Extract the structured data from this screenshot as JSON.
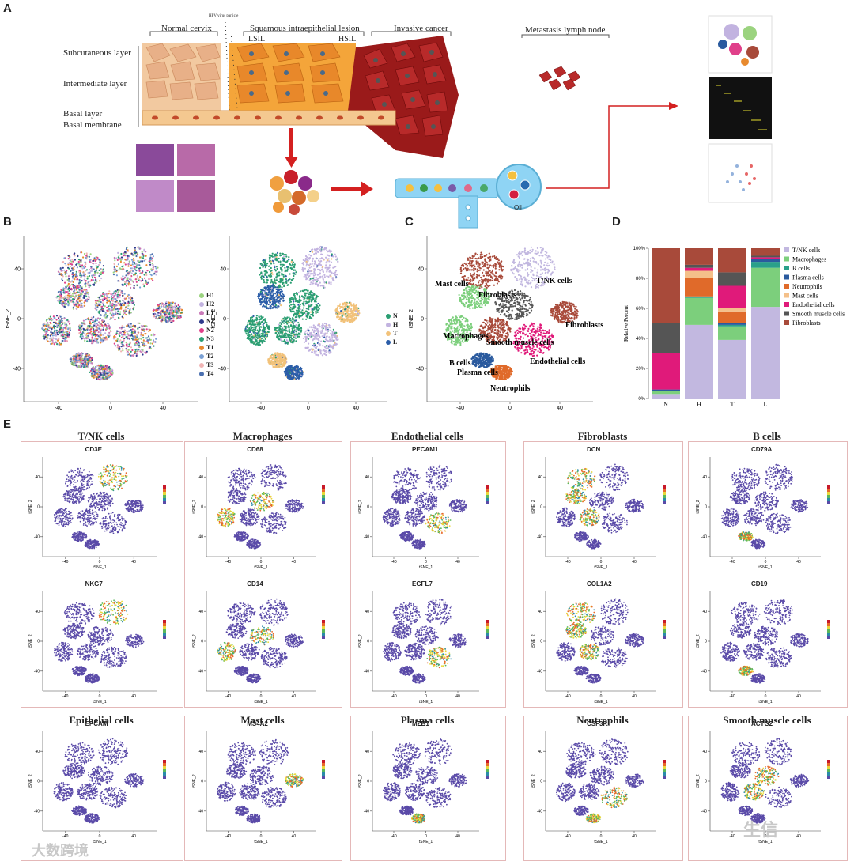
{
  "panels": {
    "A": "A",
    "B": "B",
    "C": "C",
    "D": "D",
    "E": "E"
  },
  "panelA": {
    "hpv": "HPV virus particle",
    "normal": "Normal cervix",
    "sil": "Squamous intraepithelial lesion",
    "lsil": "LSIL",
    "hsil": "HSIL",
    "invasive": "Invasive cancer",
    "metastasis": "Metastasis lymph node",
    "layers": [
      "Subcutaneous layer",
      "Intermediate layer",
      "Basal layer",
      "Basal membrane"
    ],
    "oil": "Oil"
  },
  "panelB": {
    "left_legend": [
      {
        "label": "H1",
        "color": "#9bd37f"
      },
      {
        "label": "H2",
        "color": "#c2b3e0"
      },
      {
        "label": "L1",
        "color": "#c97ab8"
      },
      {
        "label": "N1",
        "color": "#2e3a8c"
      },
      {
        "label": "N2",
        "color": "#e0408a"
      },
      {
        "label": "N3",
        "color": "#2a9e72"
      },
      {
        "label": "T1",
        "color": "#e88a2e"
      },
      {
        "label": "T2",
        "color": "#7aa0d4"
      },
      {
        "label": "T3",
        "color": "#f0b4b4"
      },
      {
        "label": "T4",
        "color": "#4a6fb0"
      }
    ],
    "right_legend": [
      {
        "label": "N",
        "color": "#2a9e72"
      },
      {
        "label": "H",
        "color": "#c2b3e0"
      },
      {
        "label": "T",
        "color": "#f2c27a"
      },
      {
        "label": "L",
        "color": "#2b5da8"
      }
    ],
    "xlabel": "tSNE_1",
    "ylabel": "tSNE_2",
    "yticks": [
      "40",
      "0",
      "-40"
    ],
    "xticks": [
      "-40",
      "0",
      "40"
    ]
  },
  "panelC": {
    "xlabel": "tSNE_1",
    "ylabel": "tSNE_2",
    "labels": [
      "Mast cells",
      "T/NK cells",
      "Fibroblasts",
      "Fibroblasts",
      "Macrophages",
      "Smooth muscle cells",
      "Endothelial cells",
      "B cells",
      "Plasma cells",
      "Neutrophils"
    ]
  },
  "chart_data": {
    "type": "bar",
    "stacked": true,
    "categories": [
      "N",
      "H",
      "T",
      "L"
    ],
    "ylabel": "Relative Percent",
    "yticks": [
      "100%",
      "80%",
      "60%",
      "40%",
      "20%",
      "0%"
    ],
    "series": [
      {
        "name": "T/NK cells",
        "color": "#c2b8e0",
        "values": [
          3,
          49,
          39,
          61
        ]
      },
      {
        "name": "Macrophages",
        "color": "#7ccf7c",
        "values": [
          2,
          18,
          9,
          26
        ]
      },
      {
        "name": "B cells",
        "color": "#2aa08a",
        "values": [
          0,
          1,
          1,
          4
        ]
      },
      {
        "name": "Plasma cells",
        "color": "#2a5a9e",
        "values": [
          1,
          0,
          1,
          2
        ]
      },
      {
        "name": "Neutrophils",
        "color": "#e06a2a",
        "values": [
          0,
          12,
          8,
          0
        ]
      },
      {
        "name": "Mast cells",
        "color": "#f4c08a",
        "values": [
          0,
          5,
          2,
          0
        ]
      },
      {
        "name": "Endothelial cells",
        "color": "#e01a7a",
        "values": [
          24,
          2,
          15,
          1
        ]
      },
      {
        "name": "Smooth muscle cells",
        "color": "#555555",
        "values": [
          20,
          2,
          9,
          1
        ]
      },
      {
        "name": "Fibroblasts",
        "color": "#a84a3a",
        "values": [
          50,
          11,
          16,
          5
        ]
      }
    ]
  },
  "panelE": {
    "cells": [
      {
        "title": "T/NK cells",
        "genes": [
          "CD3E",
          "NKG7"
        ]
      },
      {
        "title": "Macrophages",
        "genes": [
          "CD68",
          "CD14"
        ]
      },
      {
        "title": "Endothelial cells",
        "genes": [
          "PECAM1",
          "EGFL7"
        ]
      },
      {
        "title": "Fibroblasts",
        "genes": [
          "DCN",
          "COL1A2"
        ]
      },
      {
        "title": "B cells",
        "genes": [
          "CD79A",
          "CD19"
        ]
      },
      {
        "title": "Epithelial cells",
        "genes": [
          "EPCAM"
        ]
      },
      {
        "title": "Mast cells",
        "genes": [
          "MS4A2"
        ]
      },
      {
        "title": "Plasma cells",
        "genes": [
          "MZB1"
        ]
      },
      {
        "title": "Neutrophils",
        "genes": [
          "CSF3R"
        ]
      },
      {
        "title": "Smooth muscle cells",
        "genes": [
          "ACTG2"
        ]
      }
    ],
    "xlabel": "tSNE_1",
    "ylabel": "tSNE_2",
    "xticks": [
      "-40",
      "0",
      "40"
    ],
    "yticks": [
      "40",
      "0",
      "-40"
    ]
  },
  "watermark_left": "大数跨境",
  "watermark_right": "生信"
}
